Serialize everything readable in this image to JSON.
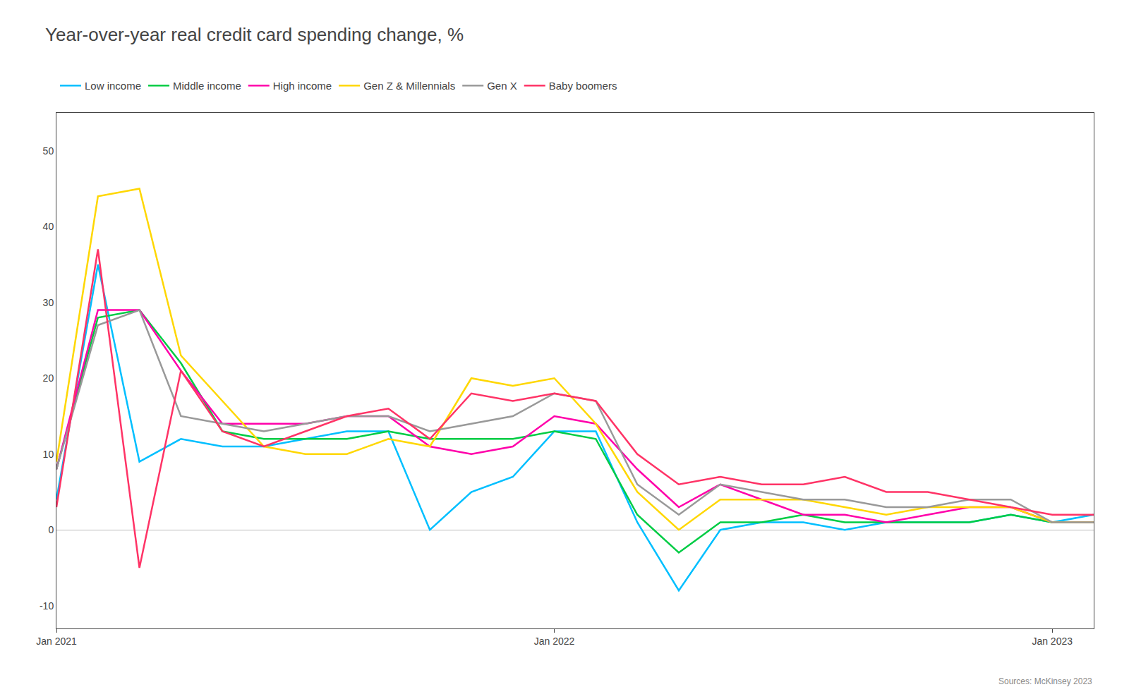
{
  "chart_data": {
    "type": "line",
    "title": "Year-over-year real credit card spending change, %",
    "categories": [
      "Jan 2021",
      null,
      null,
      null,
      null,
      null,
      null,
      null,
      null,
      null,
      null,
      null,
      "Jan 2022",
      null,
      null,
      null,
      null,
      null,
      null,
      null,
      null,
      null,
      null,
      null,
      "Jan 2023",
      null
    ],
    "series": [
      {
        "name": "Low income",
        "color": "#00BFFF",
        "values": [
          4,
          35,
          9,
          12,
          11,
          11,
          12,
          13,
          13,
          0,
          5,
          7,
          13,
          13,
          1,
          -8,
          0,
          1,
          1,
          0,
          1,
          1,
          1,
          2,
          1,
          2
        ]
      },
      {
        "name": "Middle income",
        "color": "#00CC44",
        "values": [
          8,
          28,
          29,
          22,
          13,
          12,
          12,
          12,
          13,
          12,
          12,
          12,
          13,
          12,
          2,
          -3,
          1,
          1,
          2,
          1,
          1,
          1,
          1,
          2,
          1,
          1
        ]
      },
      {
        "name": "High income",
        "color": "#FF00AA",
        "values": [
          8,
          29,
          29,
          21,
          14,
          14,
          14,
          15,
          15,
          11,
          10,
          11,
          15,
          14,
          8,
          3,
          6,
          4,
          2,
          2,
          1,
          2,
          3,
          3,
          1,
          1
        ]
      },
      {
        "name": "Gen Z & Millennials",
        "color": "#FFD700",
        "values": [
          9,
          44,
          45,
          23,
          17,
          11,
          10,
          10,
          12,
          11,
          20,
          19,
          20,
          14,
          5,
          0,
          4,
          4,
          4,
          3,
          2,
          3,
          3,
          3,
          1,
          1
        ]
      },
      {
        "name": "Gen X",
        "color": "#999999",
        "values": [
          8,
          27,
          29,
          15,
          14,
          13,
          14,
          15,
          15,
          13,
          14,
          15,
          18,
          17,
          6,
          2,
          6,
          5,
          4,
          4,
          3,
          3,
          4,
          4,
          1,
          1
        ]
      },
      {
        "name": "Baby boomers",
        "color": "#FF3366",
        "values": [
          3,
          37,
          -5,
          21,
          13,
          11,
          13,
          15,
          16,
          12,
          18,
          17,
          18,
          17,
          10,
          6,
          7,
          6,
          6,
          7,
          5,
          5,
          4,
          3,
          2,
          2
        ]
      }
    ],
    "ylim": [
      -13,
      55
    ],
    "yticks": [
      -10,
      0,
      10,
      20,
      30,
      40,
      50
    ],
    "grid": false,
    "legend": "top left",
    "annotations": [
      "Sources: McKinsey 2023"
    ]
  }
}
